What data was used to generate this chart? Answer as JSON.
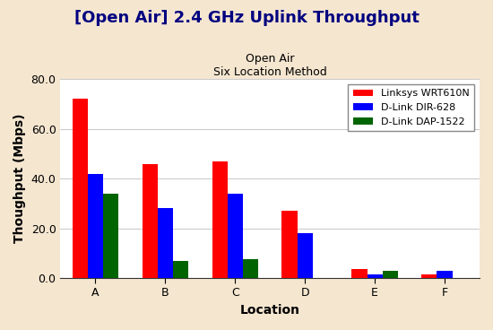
{
  "title": "[Open Air] 2.4 GHz Uplink Throughput",
  "subtitle1": "Open Air",
  "subtitle2": "Six Location Method",
  "xlabel": "Location",
  "ylabel": "Thoughput (Mbps)",
  "locations": [
    "A",
    "B",
    "C",
    "D",
    "E",
    "F"
  ],
  "series": [
    {
      "label": "Linksys WRT610N",
      "color": "#FF0000",
      "values": [
        72.0,
        46.0,
        47.0,
        27.0,
        3.5,
        1.5
      ]
    },
    {
      "label": "D-Link DIR-628",
      "color": "#0000FF",
      "values": [
        42.0,
        28.0,
        34.0,
        18.0,
        1.5,
        3.0
      ]
    },
    {
      "label": "D-Link DAP-1522",
      "color": "#006400",
      "values": [
        34.0,
        7.0,
        7.5,
        0.0,
        3.0,
        0.0
      ]
    }
  ],
  "ylim": [
    0,
    80
  ],
  "yticks": [
    0.0,
    20.0,
    40.0,
    60.0,
    80.0
  ],
  "fig_background_color": "#f5e6d0",
  "plot_background_color": "#ffffff",
  "grid_color": "#cccccc",
  "title_color": "#000080",
  "title_fontsize": 13,
  "subtitle_fontsize": 9,
  "axis_label_fontsize": 10,
  "tick_fontsize": 9,
  "legend_fontsize": 8,
  "bar_width": 0.22,
  "legend_loc": "upper right"
}
